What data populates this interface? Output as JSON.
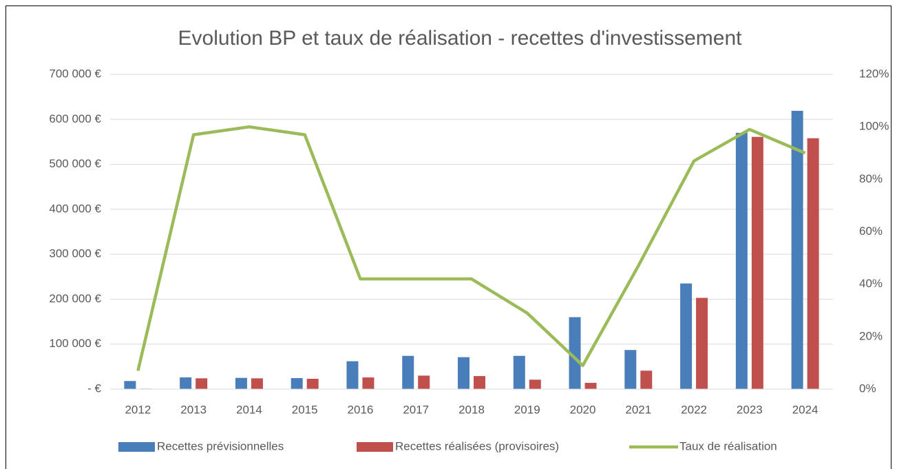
{
  "chart_data": {
    "type": "bar-line",
    "title": "Evolution BP et taux de réalisation - recettes d'investissement",
    "categories": [
      "2012",
      "2013",
      "2014",
      "2015",
      "2016",
      "2017",
      "2018",
      "2019",
      "2020",
      "2021",
      "2022",
      "2023",
      "2024"
    ],
    "series": [
      {
        "name": "Recettes prévisionnelles",
        "color": "#4a7ebb",
        "kind": "bar",
        "values": [
          18000,
          26000,
          25000,
          24500,
          62000,
          74000,
          71000,
          74000,
          160000,
          87000,
          235000,
          570000,
          619000
        ]
      },
      {
        "name": "Recettes réalisées (provisoires)",
        "color": "#c0504d",
        "kind": "bar",
        "values": [
          1000,
          24000,
          24000,
          23000,
          26000,
          30000,
          29000,
          21000,
          14000,
          41000,
          203000,
          561000,
          558000
        ]
      },
      {
        "name": "Taux de réalisation",
        "color": "#9bbb59",
        "kind": "line",
        "axis": "y2",
        "values": [
          7,
          97,
          100,
          97,
          42,
          42,
          42,
          29,
          9,
          47,
          87,
          99,
          90
        ]
      }
    ],
    "ylim": [
      0,
      700000
    ],
    "yticks": [
      {
        "value": 0,
        "label": "-   €"
      },
      {
        "value": 100000,
        "label": "100 000 €"
      },
      {
        "value": 200000,
        "label": "200 000 €"
      },
      {
        "value": 300000,
        "label": "300 000 €"
      },
      {
        "value": 400000,
        "label": "400 000 €"
      },
      {
        "value": 500000,
        "label": "500 000 €"
      },
      {
        "value": 600000,
        "label": "600 000 €"
      },
      {
        "value": 700000,
        "label": "700 000 €"
      }
    ],
    "y2lim": [
      0,
      120
    ],
    "y2ticks": [
      {
        "value": 0,
        "label": "0%"
      },
      {
        "value": 20,
        "label": "20%"
      },
      {
        "value": 40,
        "label": "40%"
      },
      {
        "value": 60,
        "label": "60%"
      },
      {
        "value": 80,
        "label": "80%"
      },
      {
        "value": 100,
        "label": "100%"
      },
      {
        "value": 120,
        "label": "120%"
      }
    ],
    "grid": true,
    "legend": "bottom"
  }
}
